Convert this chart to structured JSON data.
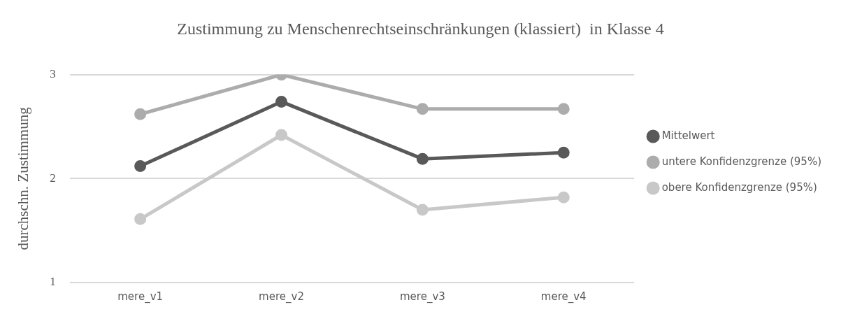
{
  "chart_data": {
    "type": "line",
    "title": "Zustimmung zu Menschenrechtseinschränkungen (klassiert)  in Klasse 4",
    "ylabel": "durchschn. Zustimmung",
    "categories": [
      "mere_v1",
      "mere_v2",
      "mere_v3",
      "mere_v4"
    ],
    "series": [
      {
        "name": "Mittelwert",
        "color": "#595959",
        "values": [
          2.12,
          2.74,
          2.19,
          2.25
        ]
      },
      {
        "name": "untere Konfidenzgrenze (95%)",
        "color": "#acacac",
        "values": [
          2.62,
          3.0,
          2.67,
          2.67
        ]
      },
      {
        "name": "obere Konfidenzgrenze (95%)",
        "color": "#c8c8c8",
        "values": [
          1.61,
          2.42,
          1.7,
          1.82
        ]
      }
    ],
    "ylim": [
      1,
      3
    ],
    "yticks": [
      1,
      2,
      3
    ],
    "grid": "y",
    "legend": "right",
    "marker": "circle",
    "line_style": "solid"
  }
}
